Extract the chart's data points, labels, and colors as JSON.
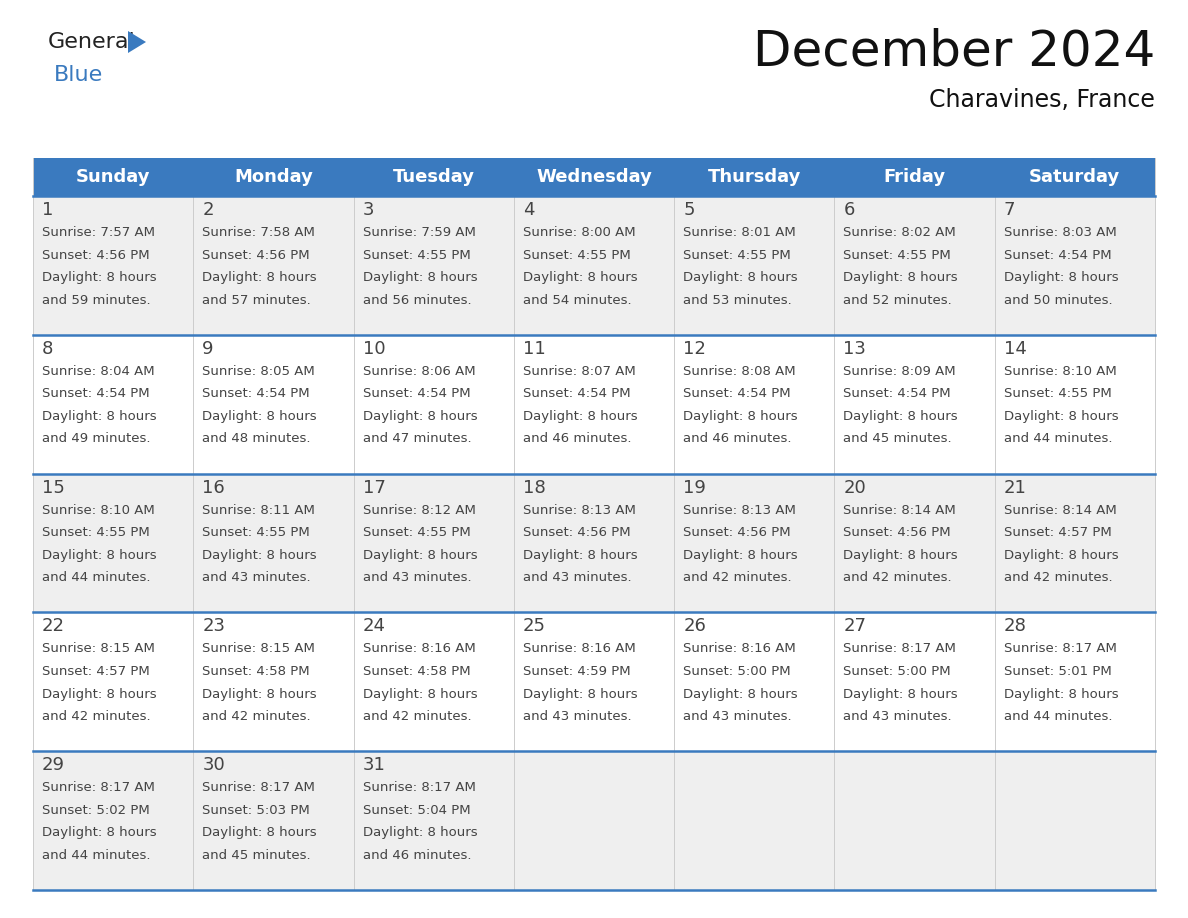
{
  "title": "December 2024",
  "subtitle": "Charavines, France",
  "header_color": "#3a7abf",
  "header_text_color": "#ffffff",
  "row_bg_odd": "#efefef",
  "row_bg_even": "#ffffff",
  "separator_color": "#3a7abf",
  "grid_color": "#cccccc",
  "text_color": "#444444",
  "days_of_week": [
    "Sunday",
    "Monday",
    "Tuesday",
    "Wednesday",
    "Thursday",
    "Friday",
    "Saturday"
  ],
  "calendar_data": [
    [
      {
        "day": "1",
        "sunrise": "7:57 AM",
        "sunset": "4:56 PM",
        "daylight_h": "8 hours",
        "daylight_m": "59 minutes."
      },
      {
        "day": "2",
        "sunrise": "7:58 AM",
        "sunset": "4:56 PM",
        "daylight_h": "8 hours",
        "daylight_m": "57 minutes."
      },
      {
        "day": "3",
        "sunrise": "7:59 AM",
        "sunset": "4:55 PM",
        "daylight_h": "8 hours",
        "daylight_m": "56 minutes."
      },
      {
        "day": "4",
        "sunrise": "8:00 AM",
        "sunset": "4:55 PM",
        "daylight_h": "8 hours",
        "daylight_m": "54 minutes."
      },
      {
        "day": "5",
        "sunrise": "8:01 AM",
        "sunset": "4:55 PM",
        "daylight_h": "8 hours",
        "daylight_m": "53 minutes."
      },
      {
        "day": "6",
        "sunrise": "8:02 AM",
        "sunset": "4:55 PM",
        "daylight_h": "8 hours",
        "daylight_m": "52 minutes."
      },
      {
        "day": "7",
        "sunrise": "8:03 AM",
        "sunset": "4:54 PM",
        "daylight_h": "8 hours",
        "daylight_m": "50 minutes."
      }
    ],
    [
      {
        "day": "8",
        "sunrise": "8:04 AM",
        "sunset": "4:54 PM",
        "daylight_h": "8 hours",
        "daylight_m": "49 minutes."
      },
      {
        "day": "9",
        "sunrise": "8:05 AM",
        "sunset": "4:54 PM",
        "daylight_h": "8 hours",
        "daylight_m": "48 minutes."
      },
      {
        "day": "10",
        "sunrise": "8:06 AM",
        "sunset": "4:54 PM",
        "daylight_h": "8 hours",
        "daylight_m": "47 minutes."
      },
      {
        "day": "11",
        "sunrise": "8:07 AM",
        "sunset": "4:54 PM",
        "daylight_h": "8 hours",
        "daylight_m": "46 minutes."
      },
      {
        "day": "12",
        "sunrise": "8:08 AM",
        "sunset": "4:54 PM",
        "daylight_h": "8 hours",
        "daylight_m": "46 minutes."
      },
      {
        "day": "13",
        "sunrise": "8:09 AM",
        "sunset": "4:54 PM",
        "daylight_h": "8 hours",
        "daylight_m": "45 minutes."
      },
      {
        "day": "14",
        "sunrise": "8:10 AM",
        "sunset": "4:55 PM",
        "daylight_h": "8 hours",
        "daylight_m": "44 minutes."
      }
    ],
    [
      {
        "day": "15",
        "sunrise": "8:10 AM",
        "sunset": "4:55 PM",
        "daylight_h": "8 hours",
        "daylight_m": "44 minutes."
      },
      {
        "day": "16",
        "sunrise": "8:11 AM",
        "sunset": "4:55 PM",
        "daylight_h": "8 hours",
        "daylight_m": "43 minutes."
      },
      {
        "day": "17",
        "sunrise": "8:12 AM",
        "sunset": "4:55 PM",
        "daylight_h": "8 hours",
        "daylight_m": "43 minutes."
      },
      {
        "day": "18",
        "sunrise": "8:13 AM",
        "sunset": "4:56 PM",
        "daylight_h": "8 hours",
        "daylight_m": "43 minutes."
      },
      {
        "day": "19",
        "sunrise": "8:13 AM",
        "sunset": "4:56 PM",
        "daylight_h": "8 hours",
        "daylight_m": "42 minutes."
      },
      {
        "day": "20",
        "sunrise": "8:14 AM",
        "sunset": "4:56 PM",
        "daylight_h": "8 hours",
        "daylight_m": "42 minutes."
      },
      {
        "day": "21",
        "sunrise": "8:14 AM",
        "sunset": "4:57 PM",
        "daylight_h": "8 hours",
        "daylight_m": "42 minutes."
      }
    ],
    [
      {
        "day": "22",
        "sunrise": "8:15 AM",
        "sunset": "4:57 PM",
        "daylight_h": "8 hours",
        "daylight_m": "42 minutes."
      },
      {
        "day": "23",
        "sunrise": "8:15 AM",
        "sunset": "4:58 PM",
        "daylight_h": "8 hours",
        "daylight_m": "42 minutes."
      },
      {
        "day": "24",
        "sunrise": "8:16 AM",
        "sunset": "4:58 PM",
        "daylight_h": "8 hours",
        "daylight_m": "42 minutes."
      },
      {
        "day": "25",
        "sunrise": "8:16 AM",
        "sunset": "4:59 PM",
        "daylight_h": "8 hours",
        "daylight_m": "43 minutes."
      },
      {
        "day": "26",
        "sunrise": "8:16 AM",
        "sunset": "5:00 PM",
        "daylight_h": "8 hours",
        "daylight_m": "43 minutes."
      },
      {
        "day": "27",
        "sunrise": "8:17 AM",
        "sunset": "5:00 PM",
        "daylight_h": "8 hours",
        "daylight_m": "43 minutes."
      },
      {
        "day": "28",
        "sunrise": "8:17 AM",
        "sunset": "5:01 PM",
        "daylight_h": "8 hours",
        "daylight_m": "44 minutes."
      }
    ],
    [
      {
        "day": "29",
        "sunrise": "8:17 AM",
        "sunset": "5:02 PM",
        "daylight_h": "8 hours",
        "daylight_m": "44 minutes."
      },
      {
        "day": "30",
        "sunrise": "8:17 AM",
        "sunset": "5:03 PM",
        "daylight_h": "8 hours",
        "daylight_m": "45 minutes."
      },
      {
        "day": "31",
        "sunrise": "8:17 AM",
        "sunset": "5:04 PM",
        "daylight_h": "8 hours",
        "daylight_m": "46 minutes."
      },
      null,
      null,
      null,
      null
    ]
  ],
  "logo_text1": "General",
  "logo_triangle_color": "#3a7abf",
  "logo_text2": "Blue",
  "logo_color1": "#222222",
  "logo_color2": "#3a7abf",
  "title_fontsize": 36,
  "subtitle_fontsize": 17,
  "header_fontsize": 13,
  "day_num_fontsize": 13,
  "cell_text_fontsize": 9.5
}
